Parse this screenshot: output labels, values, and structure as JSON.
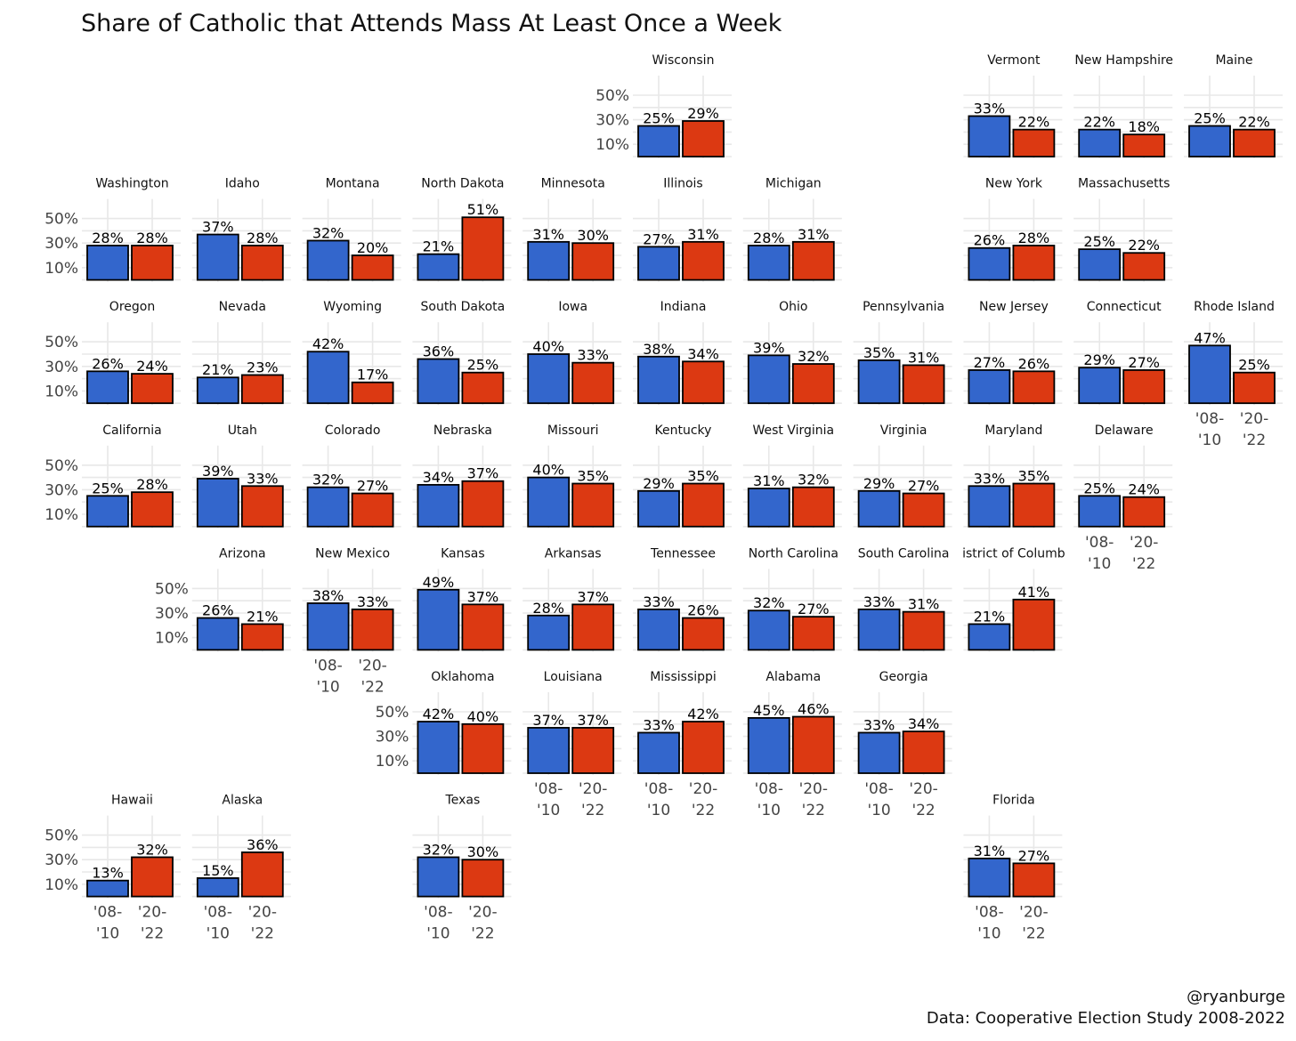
{
  "chart_data": {
    "type": "bar",
    "title": "Share of Catholic that Attends Mass At Least Once a Week",
    "categories": [
      "'08-\n'10",
      "'20-\n'22"
    ],
    "category_lines": [
      [
        "'08-",
        "'10"
      ],
      [
        "'20-",
        "'22"
      ]
    ],
    "colors": {
      "'08-'10": "#3366cc",
      "'20-'22": "#dc3912"
    },
    "y_ticks": [
      10,
      30,
      50
    ],
    "y_tick_labels": [
      "10%",
      "30%",
      "50%"
    ],
    "ylim": [
      0,
      55
    ],
    "grid": true,
    "caption": [
      "@ryanburge",
      "Data: Cooperative Election Study 2008-2022"
    ],
    "facets": [
      {
        "state": "Wisconsin",
        "label": "Wisconsin",
        "col": 5,
        "row": 0,
        "values": [
          25,
          29
        ],
        "show_y": true,
        "show_x": false
      },
      {
        "state": "Vermont",
        "label": "Vermont",
        "col": 8,
        "row": 0,
        "values": [
          33,
          22
        ],
        "show_y": false,
        "show_x": false
      },
      {
        "state": "New Hampshire",
        "label": "New Hampshire",
        "col": 9,
        "row": 0,
        "values": [
          22,
          18
        ],
        "show_y": false,
        "show_x": false
      },
      {
        "state": "Maine",
        "label": "Maine",
        "col": 10,
        "row": 0,
        "values": [
          25,
          22
        ],
        "show_y": false,
        "show_x": false
      },
      {
        "state": "Washington",
        "label": "Washington",
        "col": 0,
        "row": 1,
        "values": [
          28,
          28
        ],
        "show_y": true,
        "show_x": false
      },
      {
        "state": "Idaho",
        "label": "Idaho",
        "col": 1,
        "row": 1,
        "values": [
          37,
          28
        ],
        "show_y": false,
        "show_x": false
      },
      {
        "state": "Montana",
        "label": "Montana",
        "col": 2,
        "row": 1,
        "values": [
          32,
          20
        ],
        "show_y": false,
        "show_x": false
      },
      {
        "state": "North Dakota",
        "label": "North Dakota",
        "col": 3,
        "row": 1,
        "values": [
          21,
          51
        ],
        "show_y": false,
        "show_x": false
      },
      {
        "state": "Minnesota",
        "label": "Minnesota",
        "col": 4,
        "row": 1,
        "values": [
          31,
          30
        ],
        "show_y": false,
        "show_x": false
      },
      {
        "state": "Illinois",
        "label": "Illinois",
        "col": 5,
        "row": 1,
        "values": [
          27,
          31
        ],
        "show_y": false,
        "show_x": false
      },
      {
        "state": "Michigan",
        "label": "Michigan",
        "col": 6,
        "row": 1,
        "values": [
          28,
          31
        ],
        "show_y": false,
        "show_x": false
      },
      {
        "state": "New York",
        "label": "New York",
        "col": 8,
        "row": 1,
        "values": [
          26,
          28
        ],
        "show_y": false,
        "show_x": false
      },
      {
        "state": "Massachusetts",
        "label": "Massachusetts",
        "col": 9,
        "row": 1,
        "values": [
          25,
          22
        ],
        "show_y": false,
        "show_x": false
      },
      {
        "state": "Oregon",
        "label": "Oregon",
        "col": 0,
        "row": 2,
        "values": [
          26,
          24
        ],
        "show_y": true,
        "show_x": false
      },
      {
        "state": "Nevada",
        "label": "Nevada",
        "col": 1,
        "row": 2,
        "values": [
          21,
          23
        ],
        "show_y": false,
        "show_x": false
      },
      {
        "state": "Wyoming",
        "label": "Wyoming",
        "col": 2,
        "row": 2,
        "values": [
          42,
          17
        ],
        "show_y": false,
        "show_x": false
      },
      {
        "state": "South Dakota",
        "label": "South Dakota",
        "col": 3,
        "row": 2,
        "values": [
          36,
          25
        ],
        "show_y": false,
        "show_x": false
      },
      {
        "state": "Iowa",
        "label": "Iowa",
        "col": 4,
        "row": 2,
        "values": [
          40,
          33
        ],
        "show_y": false,
        "show_x": false
      },
      {
        "state": "Indiana",
        "label": "Indiana",
        "col": 5,
        "row": 2,
        "values": [
          38,
          34
        ],
        "show_y": false,
        "show_x": false
      },
      {
        "state": "Ohio",
        "label": "Ohio",
        "col": 6,
        "row": 2,
        "values": [
          39,
          32
        ],
        "show_y": false,
        "show_x": false
      },
      {
        "state": "Pennsylvania",
        "label": "Pennsylvania",
        "col": 7,
        "row": 2,
        "values": [
          35,
          31
        ],
        "show_y": false,
        "show_x": false
      },
      {
        "state": "New Jersey",
        "label": "New Jersey",
        "col": 8,
        "row": 2,
        "values": [
          27,
          26
        ],
        "show_y": false,
        "show_x": false
      },
      {
        "state": "Connecticut",
        "label": "Connecticut",
        "col": 9,
        "row": 2,
        "values": [
          29,
          27
        ],
        "show_y": false,
        "show_x": false
      },
      {
        "state": "Rhode Island",
        "label": "Rhode Island",
        "col": 10,
        "row": 2,
        "values": [
          47,
          25
        ],
        "show_y": false,
        "show_x": true
      },
      {
        "state": "California",
        "label": "California",
        "col": 0,
        "row": 3,
        "values": [
          25,
          28
        ],
        "show_y": true,
        "show_x": false
      },
      {
        "state": "Utah",
        "label": "Utah",
        "col": 1,
        "row": 3,
        "values": [
          39,
          33
        ],
        "show_y": false,
        "show_x": false
      },
      {
        "state": "Colorado",
        "label": "Colorado",
        "col": 2,
        "row": 3,
        "values": [
          32,
          27
        ],
        "show_y": false,
        "show_x": false
      },
      {
        "state": "Nebraska",
        "label": "Nebraska",
        "col": 3,
        "row": 3,
        "values": [
          34,
          37
        ],
        "show_y": false,
        "show_x": false
      },
      {
        "state": "Missouri",
        "label": "Missouri",
        "col": 4,
        "row": 3,
        "values": [
          40,
          35
        ],
        "show_y": false,
        "show_x": false
      },
      {
        "state": "Kentucky",
        "label": "Kentucky",
        "col": 5,
        "row": 3,
        "values": [
          29,
          35
        ],
        "show_y": false,
        "show_x": false
      },
      {
        "state": "West Virginia",
        "label": "West Virginia",
        "col": 6,
        "row": 3,
        "values": [
          31,
          32
        ],
        "show_y": false,
        "show_x": false
      },
      {
        "state": "Virginia",
        "label": "Virginia",
        "col": 7,
        "row": 3,
        "values": [
          29,
          27
        ],
        "show_y": false,
        "show_x": false
      },
      {
        "state": "Maryland",
        "label": "Maryland",
        "col": 8,
        "row": 3,
        "values": [
          33,
          35
        ],
        "show_y": false,
        "show_x": false
      },
      {
        "state": "Delaware",
        "label": "Delaware",
        "col": 9,
        "row": 3,
        "values": [
          25,
          24
        ],
        "show_y": false,
        "show_x": true
      },
      {
        "state": "Arizona",
        "label": "Arizona",
        "col": 1,
        "row": 4,
        "values": [
          26,
          21
        ],
        "show_y": true,
        "show_x": false
      },
      {
        "state": "New Mexico",
        "label": "New Mexico",
        "col": 2,
        "row": 4,
        "values": [
          38,
          33
        ],
        "show_y": false,
        "show_x": true
      },
      {
        "state": "Kansas",
        "label": "Kansas",
        "col": 3,
        "row": 4,
        "values": [
          49,
          37
        ],
        "show_y": false,
        "show_x": false
      },
      {
        "state": "Arkansas",
        "label": "Arkansas",
        "col": 4,
        "row": 4,
        "values": [
          28,
          37
        ],
        "show_y": false,
        "show_x": false
      },
      {
        "state": "Tennessee",
        "label": "Tennessee",
        "col": 5,
        "row": 4,
        "values": [
          33,
          26
        ],
        "show_y": false,
        "show_x": false
      },
      {
        "state": "North Carolina",
        "label": "North Carolina",
        "col": 6,
        "row": 4,
        "values": [
          32,
          27
        ],
        "show_y": false,
        "show_x": false
      },
      {
        "state": "South Carolina",
        "label": "South Carolina",
        "col": 7,
        "row": 4,
        "values": [
          33,
          31
        ],
        "show_y": false,
        "show_x": false
      },
      {
        "state": "District of Columbia",
        "label": "istrict of Columb",
        "col": 8,
        "row": 4,
        "values": [
          21,
          41
        ],
        "show_y": false,
        "show_x": false
      },
      {
        "state": "Oklahoma",
        "label": "Oklahoma",
        "col": 3,
        "row": 5,
        "values": [
          42,
          40
        ],
        "show_y": true,
        "show_x": false
      },
      {
        "state": "Louisiana",
        "label": "Louisiana",
        "col": 4,
        "row": 5,
        "values": [
          37,
          37
        ],
        "show_y": false,
        "show_x": true
      },
      {
        "state": "Mississippi",
        "label": "Mississippi",
        "col": 5,
        "row": 5,
        "values": [
          33,
          42
        ],
        "show_y": false,
        "show_x": true
      },
      {
        "state": "Alabama",
        "label": "Alabama",
        "col": 6,
        "row": 5,
        "values": [
          45,
          46
        ],
        "show_y": false,
        "show_x": true
      },
      {
        "state": "Georgia",
        "label": "Georgia",
        "col": 7,
        "row": 5,
        "values": [
          33,
          34
        ],
        "show_y": false,
        "show_x": true
      },
      {
        "state": "Hawaii",
        "label": "Hawaii",
        "col": 0,
        "row": 6,
        "values": [
          13,
          32
        ],
        "show_y": true,
        "show_x": true
      },
      {
        "state": "Alaska",
        "label": "Alaska",
        "col": 1,
        "row": 6,
        "values": [
          15,
          36
        ],
        "show_y": false,
        "show_x": true
      },
      {
        "state": "Texas",
        "label": "Texas",
        "col": 3,
        "row": 6,
        "values": [
          32,
          30
        ],
        "show_y": false,
        "show_x": true
      },
      {
        "state": "Florida",
        "label": "Florida",
        "col": 8,
        "row": 6,
        "values": [
          31,
          27
        ],
        "show_y": false,
        "show_x": true
      }
    ]
  }
}
